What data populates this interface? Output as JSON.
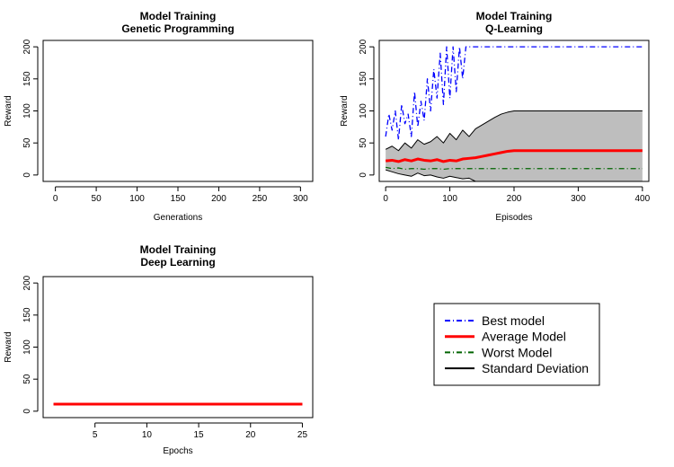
{
  "colors": {
    "best": "#0000ff",
    "average": "#ff0000",
    "worst": "#006400",
    "sd": "#000000",
    "band": "#bebebe"
  },
  "legend": {
    "entries": [
      {
        "label": "Best model",
        "color": "#0000ff",
        "dash": "dashdot",
        "width": 2
      },
      {
        "label": "Average Model",
        "color": "#ff0000",
        "dash": "solid",
        "width": 3
      },
      {
        "label": "Worst Model",
        "color": "#006400",
        "dash": "dashdot",
        "width": 2
      },
      {
        "label": "Standard Deviation",
        "color": "#000000",
        "dash": "solid",
        "width": 2
      }
    ]
  },
  "chart_data": [
    {
      "type": "line",
      "title": "Model Training",
      "subtitle": "Genetic Programming",
      "xlabel": "Generations",
      "ylabel": "Reward",
      "xlim": [
        -15,
        315
      ],
      "ylim": [
        -10,
        210
      ],
      "xticks": [
        0,
        50,
        100,
        150,
        200,
        250,
        300
      ],
      "yticks": [
        0,
        50,
        100,
        150,
        200
      ],
      "series": []
    },
    {
      "type": "line",
      "title": "Model Training",
      "subtitle": "Q-Learning",
      "xlabel": "Episodes",
      "ylabel": "Reward",
      "xlim": [
        -10,
        410
      ],
      "ylim": [
        -10,
        210
      ],
      "xticks": [
        0,
        100,
        200,
        300,
        400
      ],
      "yticks": [
        0,
        50,
        100,
        150,
        200
      ],
      "series": [
        {
          "name": "Best model",
          "x": [
            0,
            5,
            10,
            15,
            20,
            25,
            30,
            35,
            40,
            45,
            50,
            55,
            60,
            65,
            70,
            75,
            80,
            85,
            90,
            95,
            100,
            105,
            110,
            115,
            120,
            125,
            130,
            135,
            140,
            400
          ],
          "y": [
            60,
            95,
            70,
            100,
            55,
            110,
            80,
            95,
            60,
            130,
            75,
            115,
            85,
            150,
            100,
            165,
            120,
            190,
            110,
            200,
            120,
            200,
            130,
            200,
            150,
            200,
            200,
            200,
            200,
            200
          ]
        },
        {
          "name": "Average Model",
          "x": [
            0,
            10,
            20,
            30,
            40,
            50,
            60,
            70,
            80,
            90,
            100,
            110,
            120,
            130,
            140,
            150,
            160,
            170,
            180,
            190,
            200,
            400
          ],
          "y": [
            22,
            23,
            21,
            24,
            22,
            25,
            23,
            22,
            24,
            21,
            23,
            22,
            25,
            26,
            27,
            29,
            31,
            33,
            35,
            37,
            38,
            38
          ]
        },
        {
          "name": "Worst Model",
          "x": [
            0,
            10,
            20,
            30,
            40,
            50,
            60,
            70,
            80,
            90,
            100,
            110,
            120,
            130,
            400
          ],
          "y": [
            12,
            10,
            11,
            9,
            10,
            10,
            9,
            10,
            10,
            9,
            10,
            10,
            10,
            10,
            10
          ]
        },
        {
          "name": "Standard Deviation (upper)",
          "x": [
            0,
            10,
            20,
            30,
            40,
            50,
            60,
            70,
            80,
            90,
            100,
            110,
            120,
            130,
            140,
            150,
            160,
            170,
            180,
            190,
            200,
            400
          ],
          "y": [
            40,
            45,
            38,
            50,
            42,
            55,
            48,
            52,
            60,
            50,
            65,
            55,
            70,
            60,
            72,
            78,
            84,
            90,
            95,
            98,
            100,
            100
          ]
        },
        {
          "name": "Standard Deviation (lower)",
          "x": [
            0,
            10,
            20,
            30,
            40,
            50,
            60,
            70,
            80,
            90,
            100,
            110,
            120,
            130,
            140,
            400
          ],
          "y": [
            8,
            5,
            2,
            0,
            -2,
            3,
            -1,
            0,
            -3,
            -5,
            -2,
            -4,
            -6,
            -5,
            -10,
            -10
          ]
        }
      ]
    },
    {
      "type": "line",
      "title": "Model Training",
      "subtitle": "Deep Learning",
      "xlabel": "Epochs",
      "ylabel": "Reward",
      "xlim": [
        0,
        26
      ],
      "ylim": [
        -10,
        210
      ],
      "xticks": [
        5,
        10,
        15,
        20,
        25
      ],
      "yticks": [
        0,
        50,
        100,
        150,
        200
      ],
      "series": [
        {
          "name": "Best model",
          "x": [
            1,
            25
          ],
          "y": [
            11,
            11
          ]
        },
        {
          "name": "Average Model",
          "x": [
            1,
            25
          ],
          "y": [
            11,
            11
          ]
        },
        {
          "name": "Worst Model",
          "x": [
            1,
            25
          ],
          "y": [
            11,
            11
          ]
        }
      ]
    }
  ]
}
